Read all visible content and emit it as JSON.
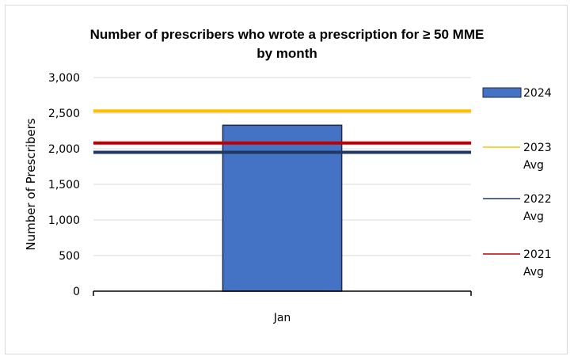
{
  "chart_data": {
    "type": "bar",
    "title_line1": "Number of prescribers  who wrote a prescription for ≥ 50 MME",
    "title_line2": "by month",
    "xlabel": "",
    "ylabel": "Number of Prescribers",
    "categories": [
      "Jan"
    ],
    "ylim": [
      0,
      3000
    ],
    "yticks": [
      0,
      500,
      1000,
      1500,
      2000,
      2500,
      3000
    ],
    "ytick_labels": [
      "0",
      "500",
      "1,000",
      "1,500",
      "2,000",
      "2,500",
      "3,000"
    ],
    "grid": true,
    "legend_position": "right",
    "series": [
      {
        "name": "2024",
        "kind": "bar",
        "values": [
          2330
        ],
        "color": "#4472c4",
        "legend_lines": [
          "2024"
        ]
      },
      {
        "name": "2023 Avg",
        "kind": "hline",
        "value": 2530,
        "color": "#ffc000",
        "legend_lines": [
          "2023",
          "Avg"
        ]
      },
      {
        "name": "2022 Avg",
        "kind": "hline",
        "value": 1950,
        "color": "#1f3864",
        "legend_lines": [
          "2022",
          "Avg"
        ]
      },
      {
        "name": "2021 Avg",
        "kind": "hline",
        "value": 2080,
        "color": "#c00000",
        "legend_lines": [
          "2021",
          "Avg"
        ]
      }
    ]
  }
}
